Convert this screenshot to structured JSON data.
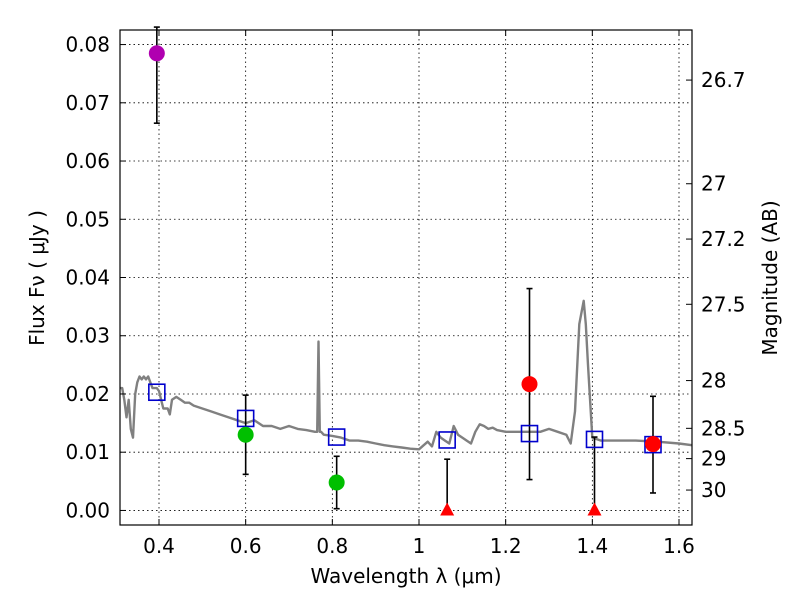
{
  "chart_data": {
    "type": "scatter",
    "xlabel": "Wavelength  λ (μm)",
    "ylabel": "Flux  Fν  ( μJy )",
    "ylabel_right": "Magnitude (AB)",
    "xlim": [
      0.31,
      1.63
    ],
    "ylim": [
      -0.0025,
      0.0825
    ],
    "grid": true,
    "x_ticks": [
      0.4,
      0.6,
      0.8,
      1.0,
      1.2,
      1.4,
      1.6
    ],
    "x_tick_labels": [
      "0.4",
      "0.6",
      "0.8",
      "1",
      "1.2",
      "1.4",
      "1.6"
    ],
    "y_ticks": [
      0.0,
      0.01,
      0.02,
      0.03,
      0.04,
      0.05,
      0.06,
      0.07,
      0.08
    ],
    "y_tick_labels": [
      "0.00",
      "0.01",
      "0.02",
      "0.03",
      "0.04",
      "0.05",
      "0.06",
      "0.07",
      "0.08"
    ],
    "right_ticks": [
      {
        "label": "26.7",
        "flux": 0.0739
      },
      {
        "label": "27",
        "flux": 0.0561
      },
      {
        "label": "27.2",
        "flux": 0.0466
      },
      {
        "label": "27.5",
        "flux": 0.0354
      },
      {
        "label": "28",
        "flux": 0.0223
      },
      {
        "label": "28.5",
        "flux": 0.0141
      },
      {
        "label": "29",
        "flux": 0.0089
      },
      {
        "label": "30",
        "flux": 0.0035
      }
    ],
    "series": [
      {
        "name": "model spectrum",
        "type": "line",
        "color": "#808080",
        "x": [
          0.31,
          0.315,
          0.32,
          0.325,
          0.33,
          0.335,
          0.34,
          0.345,
          0.35,
          0.355,
          0.36,
          0.365,
          0.37,
          0.375,
          0.38,
          0.385,
          0.39,
          0.395,
          0.4,
          0.41,
          0.42,
          0.425,
          0.43,
          0.44,
          0.45,
          0.46,
          0.47,
          0.48,
          0.5,
          0.52,
          0.54,
          0.56,
          0.58,
          0.6,
          0.62,
          0.64,
          0.66,
          0.68,
          0.7,
          0.72,
          0.74,
          0.76,
          0.765,
          0.768,
          0.771,
          0.774,
          0.78,
          0.8,
          0.82,
          0.84,
          0.86,
          0.88,
          0.9,
          0.92,
          0.94,
          0.96,
          0.98,
          1.0,
          1.02,
          1.03,
          1.04,
          1.05,
          1.06,
          1.07,
          1.08,
          1.09,
          1.1,
          1.11,
          1.12,
          1.13,
          1.14,
          1.15,
          1.16,
          1.17,
          1.18,
          1.2,
          1.22,
          1.24,
          1.26,
          1.28,
          1.3,
          1.32,
          1.34,
          1.35,
          1.36,
          1.37,
          1.38,
          1.385,
          1.39,
          1.4,
          1.42,
          1.45,
          1.5,
          1.55,
          1.6,
          1.63
        ],
        "y": [
          0.021,
          0.021,
          0.019,
          0.016,
          0.019,
          0.014,
          0.0125,
          0.02,
          0.022,
          0.023,
          0.0225,
          0.023,
          0.0225,
          0.023,
          0.022,
          0.021,
          0.021,
          0.021,
          0.0205,
          0.0175,
          0.0175,
          0.0165,
          0.019,
          0.0195,
          0.019,
          0.0185,
          0.0185,
          0.018,
          0.0175,
          0.017,
          0.0165,
          0.016,
          0.0155,
          0.015,
          0.0155,
          0.0145,
          0.0145,
          0.014,
          0.0145,
          0.014,
          0.0138,
          0.0135,
          0.0135,
          0.029,
          0.0135,
          0.0135,
          0.013,
          0.0128,
          0.0125,
          0.012,
          0.012,
          0.0118,
          0.0115,
          0.0112,
          0.011,
          0.0108,
          0.0106,
          0.0105,
          0.0118,
          0.011,
          0.0135,
          0.0125,
          0.012,
          0.0115,
          0.0145,
          0.013,
          0.0125,
          0.012,
          0.0115,
          0.0135,
          0.0148,
          0.0145,
          0.014,
          0.0142,
          0.0138,
          0.0135,
          0.0135,
          0.0135,
          0.0135,
          0.0135,
          0.014,
          0.0135,
          0.013,
          0.0115,
          0.017,
          0.032,
          0.036,
          0.032,
          0.025,
          0.0125,
          0.012,
          0.012,
          0.012,
          0.0118,
          0.0115,
          0.0112
        ]
      },
      {
        "name": "model photometry",
        "marker": "open-square",
        "color": "#0000cc",
        "x": [
          0.395,
          0.6,
          0.81,
          1.065,
          1.255,
          1.405,
          1.54
        ],
        "y": [
          0.0203,
          0.0158,
          0.0126,
          0.0121,
          0.0132,
          0.0122,
          0.0113
        ]
      },
      {
        "name": "detection (violet)",
        "marker": "circle",
        "color": "#b000b0",
        "x": [
          0.395
        ],
        "y": [
          0.0785
        ],
        "yerr_low": [
          0.0665
        ],
        "yerr_high": [
          0.083
        ]
      },
      {
        "name": "detection (green)",
        "marker": "circle",
        "color": "#00bf00",
        "x": [
          0.6,
          0.81
        ],
        "y": [
          0.013,
          0.0048
        ],
        "yerr_low": [
          0.0062,
          0.0003
        ],
        "yerr_high": [
          0.0198,
          0.0093
        ]
      },
      {
        "name": "detection (red)",
        "marker": "circle",
        "color": "#ff0000",
        "x": [
          1.255,
          1.54
        ],
        "y": [
          0.0217,
          0.0114
        ],
        "yerr_low": [
          0.0053,
          0.003
        ],
        "yerr_high": [
          0.0381,
          0.0196
        ]
      },
      {
        "name": "upper limit (red)",
        "marker": "triangle",
        "color": "#ff0000",
        "x": [
          1.065,
          1.405
        ],
        "y": [
          0.0,
          0.0
        ],
        "yerr_low": [
          0.0,
          0.0
        ],
        "yerr_high": [
          0.0088,
          0.0126
        ]
      }
    ]
  }
}
